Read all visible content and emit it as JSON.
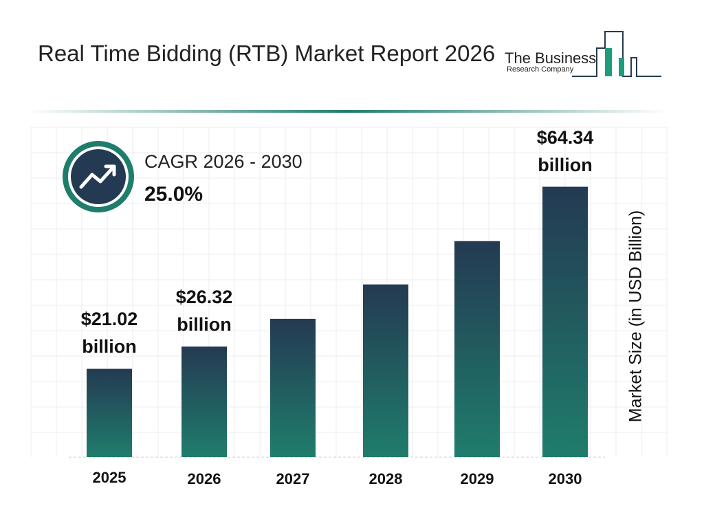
{
  "chart_data": {
    "type": "bar",
    "title": "Real Time Bidding (RTB) Market Report 2026",
    "logo": {
      "line1": "The Business",
      "line2": "Research Company"
    },
    "cagr": {
      "label": "CAGR 2026 - 2030",
      "value": "25.0%"
    },
    "y_label": "Market Size (in USD Billion)",
    "categories": [
      "2025",
      "2026",
      "2027",
      "2028",
      "2029",
      "2030"
    ],
    "values": [
      21.02,
      26.32,
      32.9,
      41.1,
      51.4,
      64.34
    ],
    "value_labels": [
      "$21.02 billion",
      "$26.32 billion",
      null,
      null,
      null,
      "$64.34 billion"
    ],
    "colors": [
      "#243a52",
      "#1f7d6c"
    ],
    "ylim": [
      0,
      70
    ]
  }
}
